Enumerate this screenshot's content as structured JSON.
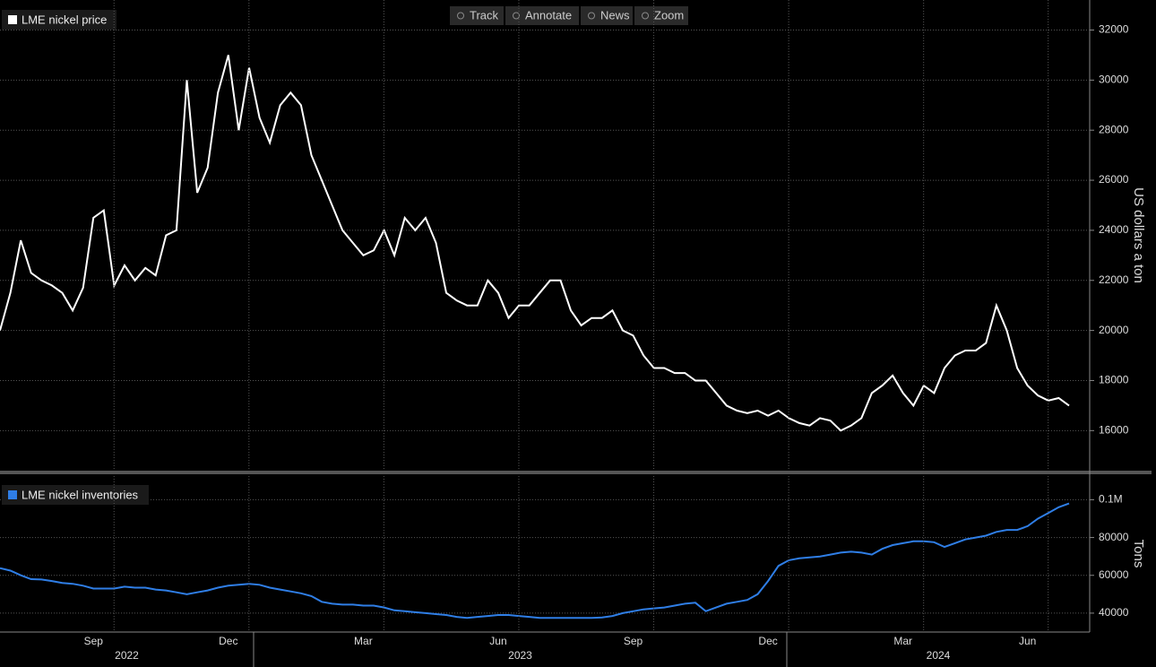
{
  "toolbar": [
    "Track",
    "Annotate",
    "News",
    "Zoom"
  ],
  "chart_data": [
    {
      "type": "line",
      "axis_label": "US dollars a ton",
      "ylim": [
        14400,
        33200
      ],
      "yticks": [
        16000,
        18000,
        20000,
        22000,
        24000,
        26000,
        28000,
        30000,
        32000
      ],
      "grid": true,
      "series": [
        {
          "name": "LME nickel price",
          "color": "#ffffff",
          "values": [
            20000,
            21500,
            23600,
            22300,
            22000,
            21800,
            21500,
            20800,
            21700,
            24500,
            24800,
            21800,
            22600,
            22000,
            22500,
            22200,
            23800,
            24000,
            30000,
            25500,
            26500,
            29500,
            31000,
            28000,
            30500,
            28500,
            27500,
            29000,
            29500,
            29000,
            27000,
            26000,
            25000,
            24000,
            23500,
            23000,
            23200,
            24000,
            23000,
            24500,
            24000,
            24500,
            23500,
            21500,
            21200,
            21000,
            21000,
            22000,
            21500,
            20500,
            21000,
            21000,
            21500,
            22000,
            22000,
            20800,
            20200,
            20500,
            20500,
            20800,
            20000,
            19800,
            19000,
            18500,
            18500,
            18300,
            18300,
            18000,
            18000,
            17500,
            17000,
            16800,
            16700,
            16800,
            16600,
            16800,
            16500,
            16300,
            16200,
            16500,
            16400,
            16000,
            16200,
            16500,
            17500,
            17800,
            18200,
            17500,
            17000,
            17800,
            17500,
            18500,
            19000,
            19200,
            19200,
            19500,
            21000,
            20000,
            18500,
            17800,
            17400,
            17200,
            17300,
            17000
          ]
        }
      ]
    },
    {
      "type": "line",
      "axis_label": "Tons",
      "categories": [
        null,
        null,
        null,
        null,
        null,
        null,
        null,
        null,
        null,
        "Sep",
        null,
        null,
        null,
        null,
        null,
        null,
        null,
        null,
        null,
        null,
        null,
        null,
        "Dec",
        null,
        null,
        null,
        null,
        null,
        null,
        null,
        null,
        null,
        null,
        null,
        null,
        "Mar",
        null,
        null,
        null,
        null,
        null,
        null,
        null,
        null,
        null,
        null,
        null,
        null,
        "Jun",
        null,
        null,
        null,
        null,
        null,
        null,
        null,
        null,
        null,
        null,
        null,
        null,
        "Sep",
        null,
        null,
        null,
        null,
        null,
        null,
        null,
        null,
        null,
        null,
        null,
        null,
        "Dec",
        null,
        null,
        null,
        null,
        null,
        null,
        null,
        null,
        null,
        null,
        null,
        null,
        "Mar",
        null,
        null,
        null,
        null,
        null,
        null,
        null,
        null,
        null,
        null,
        null,
        "Jun",
        null,
        null,
        null,
        null
      ],
      "years": [
        "2022",
        "2023",
        "2024"
      ],
      "ylim": [
        30000,
        113000
      ],
      "yticks": [
        40000,
        60000,
        80000,
        {
          "value": 100000,
          "label": "0.1M"
        }
      ],
      "grid": true,
      "series": [
        {
          "name": "LME nickel inventories",
          "color": "#2f7ee6",
          "values": [
            63800,
            62500,
            60000,
            58000,
            57800,
            57000,
            56000,
            55500,
            54500,
            53000,
            53000,
            53000,
            54000,
            53500,
            53500,
            52500,
            52000,
            51000,
            50000,
            51000,
            52000,
            53500,
            54500,
            55000,
            55500,
            55000,
            53500,
            52500,
            51500,
            50500,
            49000,
            46000,
            45000,
            44500,
            44500,
            44000,
            44000,
            43000,
            41500,
            41000,
            40500,
            40000,
            39500,
            39000,
            38000,
            37500,
            38000,
            38500,
            39000,
            39000,
            38500,
            38000,
            37500,
            37500,
            37500,
            37500,
            37500,
            37500,
            37700,
            38500,
            40000,
            41000,
            42000,
            42500,
            43000,
            44000,
            45000,
            45500,
            41000,
            43000,
            45000,
            46000,
            47000,
            50000,
            57000,
            65000,
            68000,
            69000,
            69500,
            70000,
            71000,
            72000,
            72500,
            72000,
            71000,
            74000,
            76000,
            77000,
            78000,
            78000,
            77500,
            75000,
            77000,
            79000,
            80000,
            81000,
            83000,
            84000,
            84000,
            86000,
            90000,
            93000,
            96000,
            98000
          ]
        }
      ]
    }
  ]
}
